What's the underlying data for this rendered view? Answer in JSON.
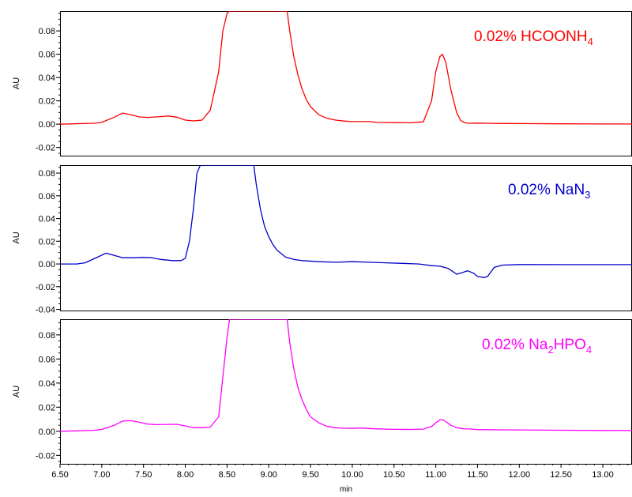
{
  "chart_data": [
    {
      "type": "line",
      "ylabel": "AU",
      "xlabel": "",
      "xlim": [
        6.5,
        13.35
      ],
      "ylim": [
        -0.027,
        0.097
      ],
      "yticks": [
        -0.02,
        0.0,
        0.02,
        0.04,
        0.06,
        0.08
      ],
      "ytick_labels": [
        "-0.02",
        "0.00",
        "0.02",
        "0.04",
        "0.06",
        "0.08"
      ],
      "annotation": {
        "parts": [
          [
            "0.02% HCOONH",
            "n"
          ],
          [
            "4",
            "sub"
          ]
        ]
      },
      "color": "#ff0000",
      "series": [
        {
          "x": [
            6.5,
            6.9,
            7.0,
            7.15,
            7.25,
            7.35,
            7.45,
            7.55,
            7.65,
            7.8,
            7.9,
            8.0,
            8.1,
            8.2,
            8.3,
            8.4,
            8.45,
            8.5,
            8.53,
            8.56,
            8.58,
            8.6,
            8.62,
            8.65,
            8.7,
            9.0,
            9.2,
            9.22,
            9.25,
            9.3,
            9.35,
            9.4,
            9.45,
            9.5,
            9.6,
            9.7,
            9.8,
            9.9,
            10.0,
            10.1,
            10.2,
            10.3,
            10.5,
            10.7,
            10.85,
            10.95,
            11.0,
            11.05,
            11.08,
            11.12,
            11.18,
            11.25,
            11.3,
            11.35,
            11.4,
            11.5,
            11.6,
            11.8,
            12.0,
            12.5,
            13.0,
            13.35
          ],
          "y": [
            0.0,
            0.0008,
            0.0015,
            0.006,
            0.0095,
            0.008,
            0.0062,
            0.0058,
            0.0062,
            0.007,
            0.006,
            0.0035,
            0.0028,
            0.0035,
            0.012,
            0.045,
            0.08,
            0.095,
            0.097,
            0.097,
            0.097,
            0.097,
            0.097,
            0.097,
            0.097,
            0.097,
            0.097,
            0.097,
            0.08,
            0.058,
            0.042,
            0.03,
            0.021,
            0.015,
            0.008,
            0.005,
            0.0035,
            0.0027,
            0.0022,
            0.0022,
            0.0022,
            0.0015,
            0.0013,
            0.0012,
            0.002,
            0.02,
            0.045,
            0.058,
            0.06,
            0.053,
            0.03,
            0.01,
            0.003,
            0.0012,
            0.0008,
            0.0009,
            0.0008,
            0.0006,
            0.0005,
            0.0003,
            0.0002,
            0.0002
          ]
        }
      ]
    },
    {
      "type": "line",
      "ylabel": "AU",
      "xlabel": "",
      "xlim": [
        6.5,
        13.35
      ],
      "ylim": [
        -0.041,
        0.087
      ],
      "yticks": [
        -0.04,
        -0.02,
        0.0,
        0.02,
        0.04,
        0.06,
        0.08
      ],
      "ytick_labels": [
        "-0.04",
        "-0.02",
        "0.00",
        "0.02",
        "0.04",
        "0.06",
        "0.08"
      ],
      "annotation": {
        "parts": [
          [
            "0.02% NaN",
            "n"
          ],
          [
            "3",
            "sub"
          ]
        ]
      },
      "color": "#0000cc",
      "series": [
        {
          "x": [
            6.5,
            6.7,
            6.8,
            6.95,
            7.05,
            7.15,
            7.25,
            7.4,
            7.5,
            7.6,
            7.7,
            7.85,
            7.95,
            8.0,
            8.05,
            8.1,
            8.14,
            8.18,
            8.2,
            8.22,
            8.3,
            8.8,
            8.82,
            8.85,
            8.9,
            8.95,
            9.0,
            9.05,
            9.1,
            9.2,
            9.3,
            9.4,
            9.6,
            9.8,
            10.0,
            10.2,
            10.4,
            10.6,
            10.8,
            10.95,
            11.05,
            11.15,
            11.25,
            11.3,
            11.38,
            11.45,
            11.5,
            11.58,
            11.62,
            11.7,
            11.8,
            12.0,
            12.5,
            13.0,
            13.35
          ],
          "y": [
            0.0,
            0.0,
            0.001,
            0.006,
            0.0095,
            0.0075,
            0.0055,
            0.0055,
            0.0058,
            0.0055,
            0.004,
            0.003,
            0.003,
            0.005,
            0.02,
            0.05,
            0.08,
            0.087,
            0.087,
            0.087,
            0.087,
            0.087,
            0.087,
            0.07,
            0.048,
            0.033,
            0.024,
            0.017,
            0.012,
            0.006,
            0.004,
            0.003,
            0.002,
            0.0015,
            0.002,
            0.0015,
            0.001,
            0.0005,
            0.0,
            -0.0015,
            -0.002,
            -0.004,
            -0.009,
            -0.008,
            -0.006,
            -0.008,
            -0.011,
            -0.012,
            -0.011,
            -0.003,
            -0.001,
            -0.0005,
            -0.0006,
            -0.0006,
            -0.0006
          ]
        }
      ]
    },
    {
      "type": "line",
      "ylabel": "AU",
      "xlabel": "min",
      "xlim": [
        6.5,
        13.35
      ],
      "ylim": [
        -0.027,
        0.093
      ],
      "yticks": [
        -0.02,
        0.0,
        0.02,
        0.04,
        0.06,
        0.08
      ],
      "ytick_labels": [
        "-0.02",
        "0.00",
        "0.02",
        "0.04",
        "0.06",
        "0.08"
      ],
      "xticks": [
        6.5,
        7.0,
        7.5,
        8.0,
        8.5,
        9.0,
        9.5,
        10.0,
        10.5,
        11.0,
        11.5,
        12.0,
        12.5,
        13.0
      ],
      "xtick_labels": [
        "6.50",
        "7.00",
        "7.50",
        "8.00",
        "8.50",
        "9.00",
        "9.50",
        "10.00",
        "10.50",
        "11.00",
        "11.50",
        "12.00",
        "12.50",
        "13.00"
      ],
      "annotation": {
        "parts": [
          [
            "0.02% Na",
            "n"
          ],
          [
            "2",
            "sub"
          ],
          [
            "HPO",
            "n"
          ],
          [
            "4",
            "sub"
          ]
        ]
      },
      "color": "#ff00ff",
      "series": [
        {
          "x": [
            6.5,
            6.9,
            7.0,
            7.15,
            7.25,
            7.35,
            7.45,
            7.55,
            7.65,
            7.8,
            7.9,
            8.0,
            8.1,
            8.2,
            8.3,
            8.4,
            8.45,
            8.5,
            8.53,
            8.56,
            8.58,
            8.6,
            8.62,
            8.65,
            8.7,
            9.0,
            9.2,
            9.22,
            9.25,
            9.3,
            9.35,
            9.4,
            9.45,
            9.5,
            9.6,
            9.7,
            9.8,
            9.9,
            10.0,
            10.1,
            10.2,
            10.3,
            10.5,
            10.7,
            10.85,
            10.95,
            11.0,
            11.05,
            11.08,
            11.12,
            11.18,
            11.25,
            11.3,
            11.35,
            11.4,
            11.5,
            11.6,
            11.8,
            12.0,
            12.5,
            13.0,
            13.35
          ],
          "y": [
            0.0,
            0.0008,
            0.0015,
            0.005,
            0.0085,
            0.0088,
            0.0075,
            0.006,
            0.0055,
            0.0057,
            0.0058,
            0.0045,
            0.003,
            0.003,
            0.0035,
            0.012,
            0.045,
            0.078,
            0.093,
            0.093,
            0.093,
            0.093,
            0.093,
            0.093,
            0.093,
            0.093,
            0.093,
            0.093,
            0.074,
            0.052,
            0.036,
            0.026,
            0.018,
            0.012,
            0.007,
            0.004,
            0.003,
            0.0025,
            0.0024,
            0.0027,
            0.0023,
            0.002,
            0.0016,
            0.0015,
            0.0018,
            0.004,
            0.007,
            0.0095,
            0.0095,
            0.008,
            0.005,
            0.003,
            0.0024,
            0.002,
            0.0019,
            0.0014,
            0.0013,
            0.0012,
            0.0011,
            0.0009,
            0.0007,
            0.0006
          ]
        }
      ]
    }
  ]
}
